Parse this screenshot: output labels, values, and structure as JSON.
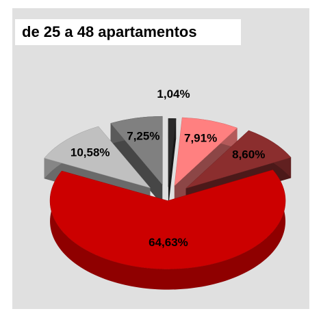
{
  "chart_data": {
    "type": "pie",
    "title": "de 25 a 48 apartamentos",
    "categories": [
      null,
      null,
      null,
      null,
      null,
      null
    ],
    "values": [
      1.04,
      7.91,
      8.6,
      64.63,
      10.58,
      7.25
    ],
    "value_labels": [
      "1,04%",
      "7,91%",
      "8,60%",
      "64,63%",
      "10,58%",
      "7,25%"
    ],
    "colors": [
      "#2a2a2a",
      "#ff8080",
      "#8b2e2e",
      "#cc0000",
      "#c0c0c0",
      "#808080"
    ]
  }
}
